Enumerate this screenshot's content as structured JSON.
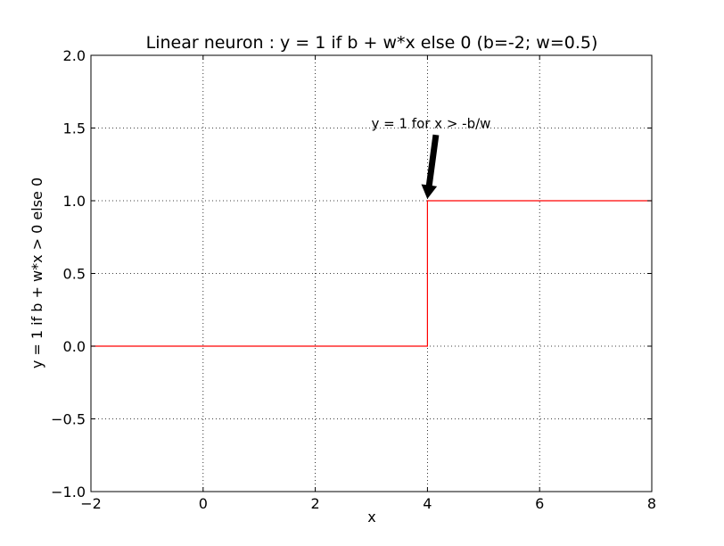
{
  "chart_data": {
    "type": "line",
    "title": "Linear neuron : y = 1 if b + w*x else 0 (b=-2; w=0.5)",
    "xlabel": "x",
    "ylabel": "y = 1 if b + w*x > 0 else 0",
    "xlim": [
      -2,
      8
    ],
    "ylim": [
      -1.0,
      2.0
    ],
    "grid": true,
    "grid_style": "dotted",
    "x_ticks": [
      -2,
      0,
      2,
      4,
      6,
      8
    ],
    "x_tick_labels": [
      "−2",
      "0",
      "2",
      "4",
      "6",
      "8"
    ],
    "y_ticks": [
      -1.0,
      -0.5,
      0.0,
      0.5,
      1.0,
      1.5,
      2.0
    ],
    "y_tick_labels": [
      "−1.0",
      "−0.5",
      "0.0",
      "0.5",
      "1.0",
      "1.5",
      "2.0"
    ],
    "series": [
      {
        "color": "#ff0000",
        "step": true,
        "x": [
          -2,
          4,
          4,
          8
        ],
        "y": [
          0,
          0,
          1,
          1
        ]
      }
    ],
    "annotations": [
      {
        "text": "y = 1 for x > -b/w",
        "text_x": 3.0,
        "text_y": 1.5,
        "arrow_from": [
          4.15,
          1.45
        ],
        "arrow_to": [
          4.0,
          1.0
        ],
        "arrow_color": "#000000"
      }
    ]
  }
}
